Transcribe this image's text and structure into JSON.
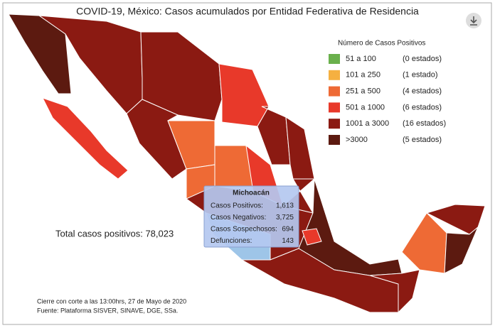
{
  "title": "COVID-19, México: Casos acumulados por Entidad Federativa de Residencia",
  "legend": {
    "title": "Número de Casos Positivos",
    "items": [
      {
        "range": "51 a 100",
        "count": "(0 estados)",
        "color": "#6ab04c"
      },
      {
        "range": "101 a 250",
        "count": "(1 estado)",
        "color": "#f5b041"
      },
      {
        "range": "251 a 500",
        "count": "(4 estados)",
        "color": "#ee6a35"
      },
      {
        "range": "501 a 1000",
        "count": "(6 estados)",
        "color": "#e8392a"
      },
      {
        "range": "1001 a 3000",
        "count": "(16 estados)",
        "color": "#8b1a12"
      },
      {
        "range": ">3000",
        "count": "(5 estados)",
        "color": "#5c1a10"
      }
    ]
  },
  "tooltip": {
    "title": "Michoacán",
    "rows": [
      {
        "label": "Casos Positivos:",
        "value": "1,613"
      },
      {
        "label": "Casos Negativos:",
        "value": "3,725"
      },
      {
        "label": "Casos Sospechosos:",
        "value": "694"
      },
      {
        "label": "Defunciones:",
        "value": "143"
      }
    ]
  },
  "total": "Total casos positivos: 78,023",
  "footer": [
    "Cierre con corte a las 13:00hrs, 27 de Mayo de 2020",
    "Fuente: Plataforma SISVER, SINAVE, DGE, SSa."
  ]
}
